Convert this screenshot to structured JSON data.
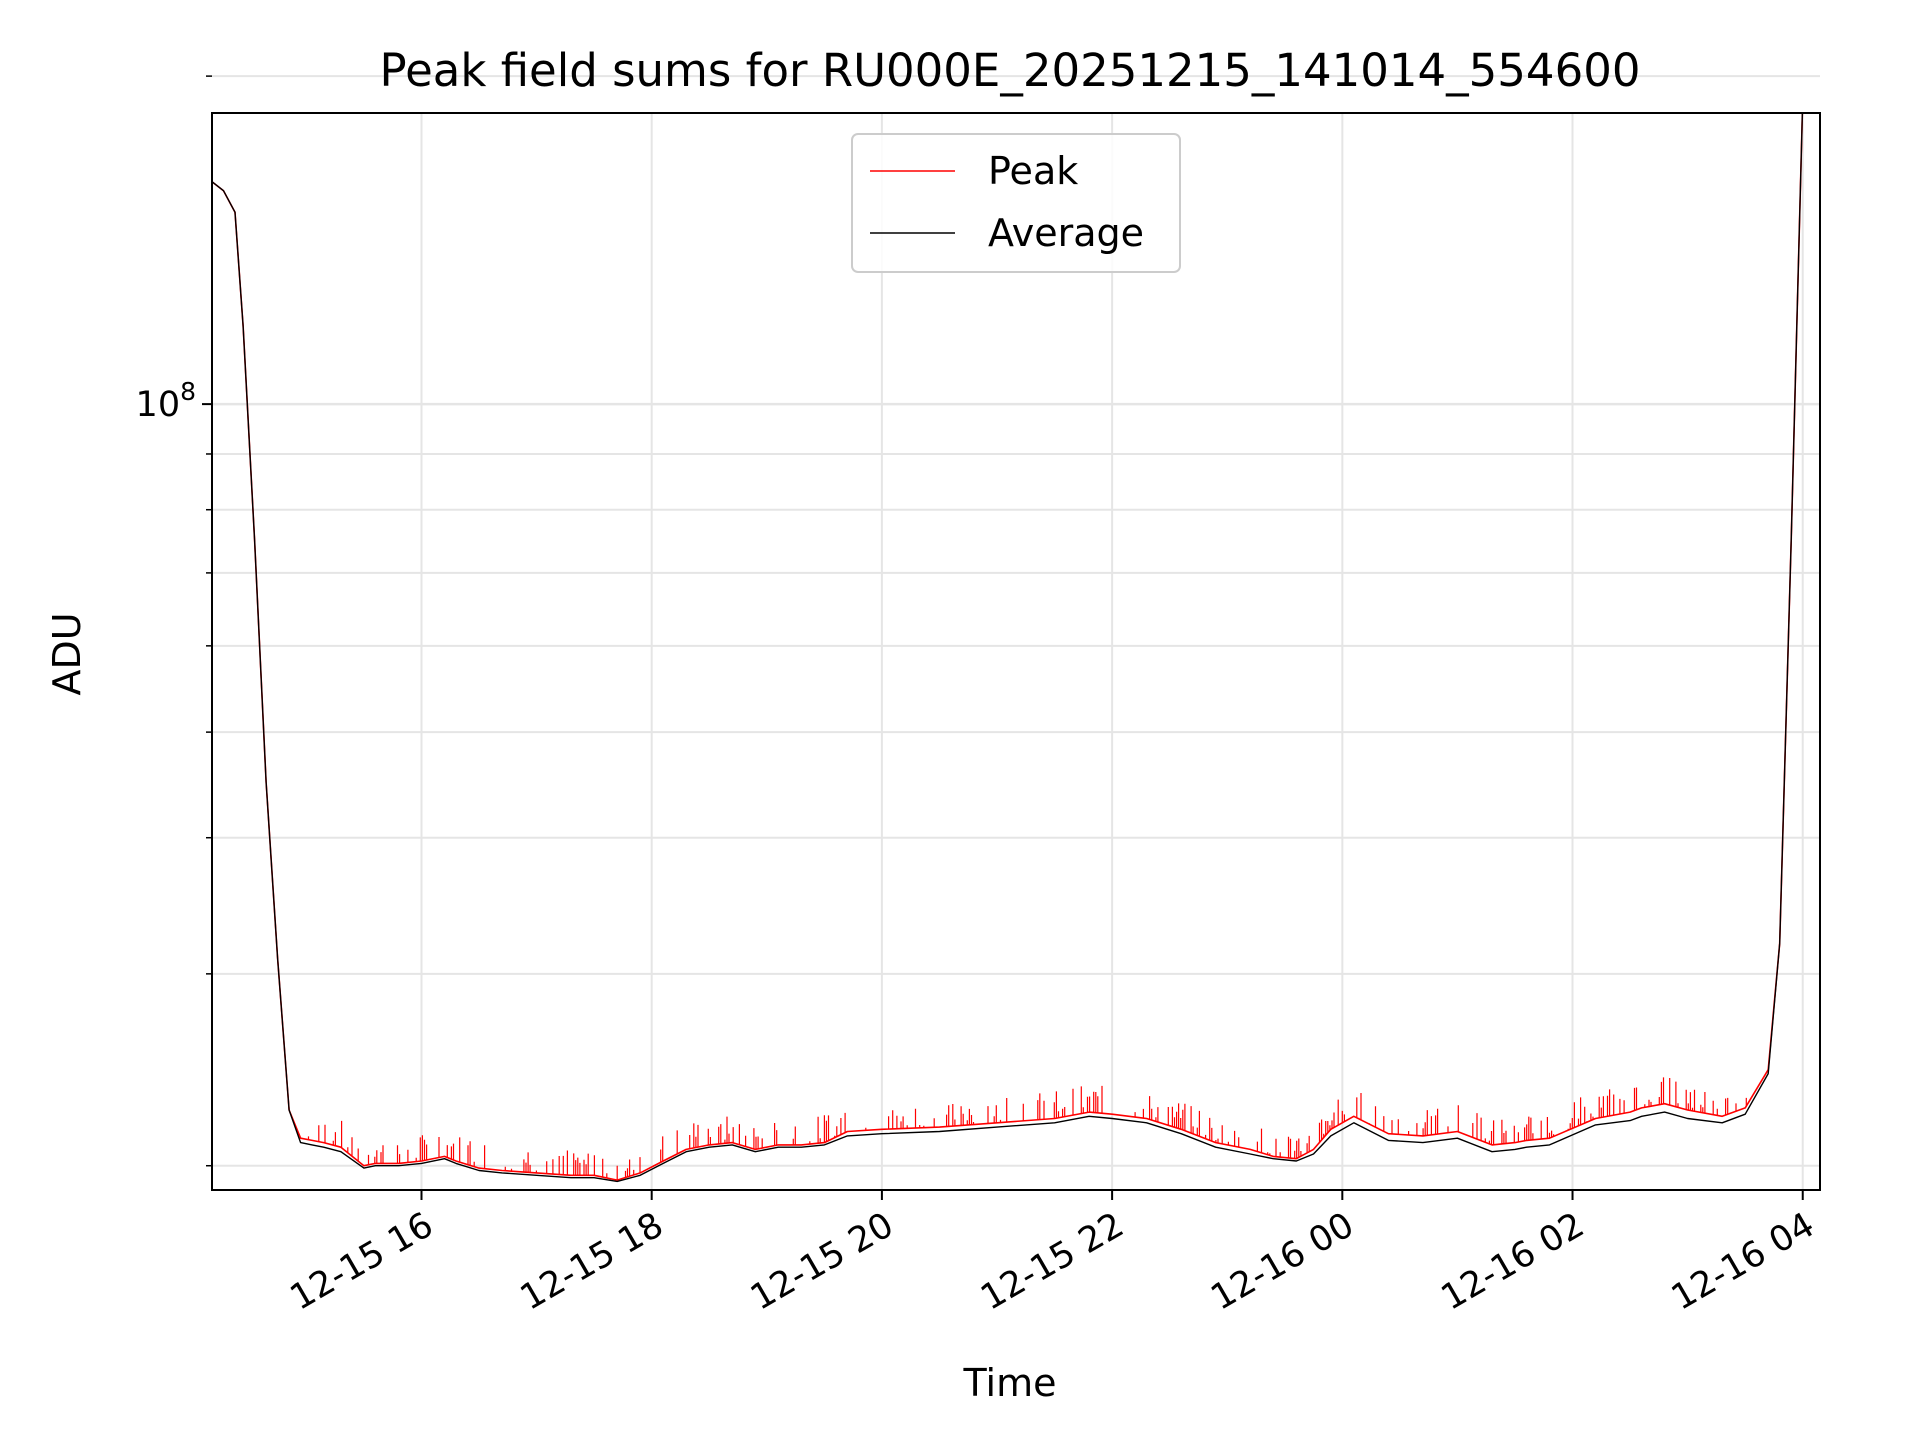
{
  "chart_data": {
    "type": "line",
    "title": "Peak field sums for RU000E_20251215_141014_554600",
    "xlabel": "Time",
    "ylabel": "ADU",
    "yscale": "log",
    "ylim": [
      19000000,
      185000000
    ],
    "xlim_hours": [
      14.18,
      28.15
    ],
    "x_ticks": [
      {
        "hours": 16,
        "label": "12-15 16"
      },
      {
        "hours": 18,
        "label": "12-15 18"
      },
      {
        "hours": 20,
        "label": "12-15 20"
      },
      {
        "hours": 22,
        "label": "12-15 22"
      },
      {
        "hours": 24,
        "label": "12-16 00"
      },
      {
        "hours": 26,
        "label": "12-16 02"
      },
      {
        "hours": 28,
        "label": "12-16 04"
      }
    ],
    "y_major_tick": {
      "value": 100000000,
      "base": "10",
      "exponent": "8"
    },
    "y_minor_ticks": [
      20000000,
      30000000,
      40000000,
      50000000,
      60000000,
      70000000,
      80000000,
      90000000,
      200000000
    ],
    "grid": true,
    "legend_position": "top-center",
    "series": [
      {
        "name": "Peak",
        "color": "#ff0000",
        "x_hours": [
          14.18,
          14.28,
          14.38,
          14.45,
          14.55,
          14.65,
          14.75,
          14.85,
          14.95,
          15.05,
          15.15,
          15.3,
          15.5,
          15.6,
          15.8,
          16.0,
          16.2,
          16.3,
          16.5,
          16.7,
          17.0,
          17.3,
          17.5,
          17.7,
          17.9,
          18.1,
          18.3,
          18.5,
          18.7,
          18.9,
          19.1,
          19.3,
          19.5,
          19.7,
          20.0,
          20.5,
          21.0,
          21.5,
          21.8,
          22.0,
          22.3,
          22.6,
          22.9,
          23.2,
          23.4,
          23.6,
          23.75,
          23.9,
          24.1,
          24.4,
          24.7,
          25.0,
          25.3,
          25.5,
          25.6,
          25.8,
          26.2,
          26.5,
          26.6,
          26.8,
          27.0,
          27.3,
          27.5,
          27.7,
          27.8,
          27.9,
          28.0
        ],
        "y_adu": [
          160000000,
          157000000,
          150000000,
          118000000,
          75000000,
          45000000,
          31000000,
          22500000,
          21200000,
          21100000,
          21000000,
          20800000,
          20000000,
          20100000,
          20100000,
          20200000,
          20400000,
          20200000,
          19900000,
          19800000,
          19700000,
          19600000,
          19600000,
          19400000,
          19700000,
          20200000,
          20700000,
          20900000,
          21000000,
          20700000,
          20900000,
          20900000,
          21000000,
          21500000,
          21600000,
          21700000,
          21900000,
          22100000,
          22400000,
          22300000,
          22100000,
          21600000,
          21000000,
          20700000,
          20400000,
          20300000,
          20700000,
          21600000,
          22200000,
          21400000,
          21300000,
          21500000,
          20900000,
          21000000,
          21100000,
          21200000,
          22100000,
          22400000,
          22600000,
          22800000,
          22500000,
          22200000,
          22600000,
          24500000,
          32000000,
          75000000,
          190000000
        ]
      },
      {
        "name": "Average",
        "color": "#000000",
        "x_hours": [
          14.18,
          14.28,
          14.38,
          14.45,
          14.55,
          14.65,
          14.75,
          14.85,
          14.95,
          15.05,
          15.15,
          15.3,
          15.5,
          15.6,
          15.8,
          16.0,
          16.2,
          16.3,
          16.5,
          16.7,
          17.0,
          17.3,
          17.5,
          17.7,
          17.9,
          18.1,
          18.3,
          18.5,
          18.7,
          18.9,
          19.1,
          19.3,
          19.5,
          19.7,
          20.0,
          20.5,
          21.0,
          21.5,
          21.8,
          22.0,
          22.3,
          22.6,
          22.9,
          23.2,
          23.4,
          23.6,
          23.75,
          23.9,
          24.1,
          24.4,
          24.7,
          25.0,
          25.3,
          25.5,
          25.6,
          25.8,
          26.2,
          26.5,
          26.6,
          26.8,
          27.0,
          27.3,
          27.5,
          27.7,
          27.8,
          27.9,
          28.0
        ],
        "y_adu": [
          160000000,
          157000000,
          150000000,
          118000000,
          75000000,
          45000000,
          31000000,
          22500000,
          21000000,
          20900000,
          20800000,
          20600000,
          19900000,
          20000000,
          20000000,
          20100000,
          20300000,
          20100000,
          19800000,
          19700000,
          19600000,
          19500000,
          19500000,
          19350000,
          19600000,
          20100000,
          20600000,
          20800000,
          20900000,
          20600000,
          20800000,
          20800000,
          20900000,
          21300000,
          21400000,
          21500000,
          21700000,
          21900000,
          22200000,
          22100000,
          21900000,
          21400000,
          20800000,
          20500000,
          20300000,
          20200000,
          20500000,
          21300000,
          21900000,
          21100000,
          21000000,
          21200000,
          20600000,
          20700000,
          20800000,
          20900000,
          21800000,
          22000000,
          22200000,
          22400000,
          22100000,
          21900000,
          22300000,
          24300000,
          32000000,
          75000000,
          190000000
        ]
      }
    ]
  }
}
